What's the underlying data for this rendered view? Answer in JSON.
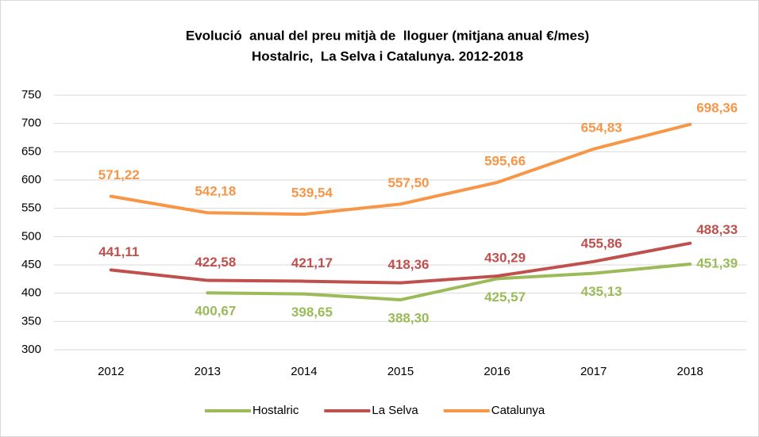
{
  "chart_data": {
    "type": "line",
    "title": [
      "Evolució  anual del preu mitjà de  lloguer (mitjana anual €/mes)",
      "Hostalric,  La Selva i Catalunya. 2012-2018"
    ],
    "categories": [
      "2012",
      "2013",
      "2014",
      "2015",
      "2016",
      "2017",
      "2018"
    ],
    "series": [
      {
        "name": "Hostalric",
        "color": "#9bbb59",
        "values": [
          null,
          400.67,
          398.65,
          388.3,
          425.57,
          435.13,
          451.39
        ],
        "value_labels": [
          null,
          "400,67",
          "398,65",
          "388,30",
          "425,57",
          "435,13",
          "451,39"
        ]
      },
      {
        "name": "La Selva",
        "color": "#c0504d",
        "values": [
          441.11,
          422.58,
          421.17,
          418.36,
          430.29,
          455.86,
          488.33
        ],
        "value_labels": [
          "441,11",
          "422,58",
          "421,17",
          "418,36",
          "430,29",
          "455,86",
          "488,33"
        ]
      },
      {
        "name": "Catalunya",
        "color": "#f79646",
        "values": [
          571.22,
          542.18,
          539.54,
          557.5,
          595.66,
          654.83,
          698.36
        ],
        "value_labels": [
          "571,22",
          "542,18",
          "539,54",
          "557,50",
          "595,66",
          "654,83",
          "698,36"
        ]
      }
    ],
    "ylim": [
      300,
      750
    ],
    "yticks": [
      300,
      350,
      400,
      450,
      500,
      550,
      600,
      650,
      700,
      750
    ],
    "grid": true,
    "legend": "bottom"
  }
}
